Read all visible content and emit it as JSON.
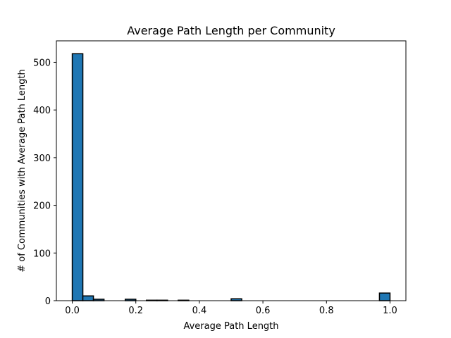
{
  "chart_data": {
    "type": "bar",
    "title": "Average Path Length per Community",
    "xlabel": "Average Path Length",
    "ylabel": "# of Communities with Average Path Length",
    "xlim": [
      -0.05,
      1.05
    ],
    "ylim": [
      0,
      545
    ],
    "bin_width": 0.0333,
    "bins": [
      {
        "x0": 0.0,
        "count": 518
      },
      {
        "x0": 0.0333,
        "count": 10
      },
      {
        "x0": 0.0667,
        "count": 3
      },
      {
        "x0": 0.1,
        "count": 0
      },
      {
        "x0": 0.1333,
        "count": 0
      },
      {
        "x0": 0.1667,
        "count": 3
      },
      {
        "x0": 0.2,
        "count": 0
      },
      {
        "x0": 0.2333,
        "count": 1
      },
      {
        "x0": 0.2667,
        "count": 1
      },
      {
        "x0": 0.3,
        "count": 0
      },
      {
        "x0": 0.3333,
        "count": 1
      },
      {
        "x0": 0.3667,
        "count": 0
      },
      {
        "x0": 0.4,
        "count": 0
      },
      {
        "x0": 0.4333,
        "count": 0
      },
      {
        "x0": 0.4667,
        "count": 0
      },
      {
        "x0": 0.5,
        "count": 4
      },
      {
        "x0": 0.5333,
        "count": 0
      },
      {
        "x0": 0.5667,
        "count": 0
      },
      {
        "x0": 0.6,
        "count": 0
      },
      {
        "x0": 0.6333,
        "count": 0
      },
      {
        "x0": 0.6667,
        "count": 0
      },
      {
        "x0": 0.7,
        "count": 0
      },
      {
        "x0": 0.7333,
        "count": 0
      },
      {
        "x0": 0.7667,
        "count": 0
      },
      {
        "x0": 0.8,
        "count": 0
      },
      {
        "x0": 0.8333,
        "count": 0
      },
      {
        "x0": 0.8667,
        "count": 0
      },
      {
        "x0": 0.9,
        "count": 0
      },
      {
        "x0": 0.9333,
        "count": 0
      },
      {
        "x0": 0.9667,
        "count": 16
      }
    ],
    "xticks": [
      {
        "value": 0.0,
        "label": "0.0"
      },
      {
        "value": 0.2,
        "label": "0.2"
      },
      {
        "value": 0.4,
        "label": "0.4"
      },
      {
        "value": 0.6,
        "label": "0.6"
      },
      {
        "value": 0.8,
        "label": "0.8"
      },
      {
        "value": 1.0,
        "label": "1.0"
      }
    ],
    "yticks": [
      {
        "value": 0,
        "label": "0"
      },
      {
        "value": 100,
        "label": "100"
      },
      {
        "value": 200,
        "label": "200"
      },
      {
        "value": 300,
        "label": "300"
      },
      {
        "value": 400,
        "label": "400"
      },
      {
        "value": 500,
        "label": "500"
      }
    ],
    "bar_color": "#1f77b4",
    "edge_color": "#000000",
    "grid": false,
    "legend": false
  }
}
